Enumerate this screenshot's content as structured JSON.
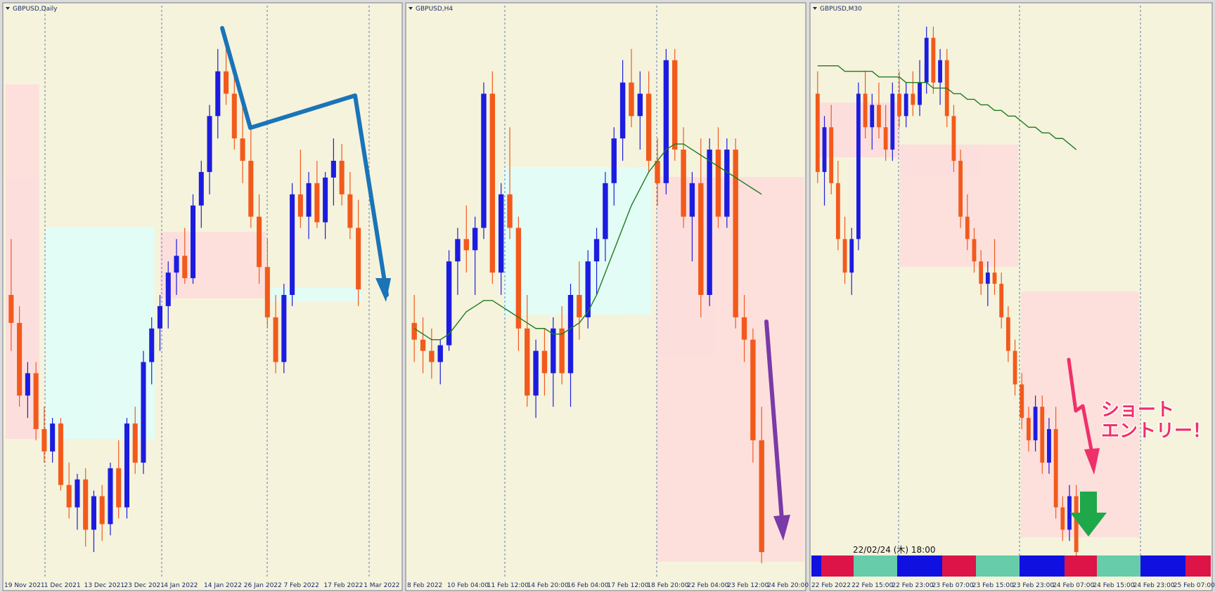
{
  "panels": [
    {
      "title": "GBPUSD,Daily",
      "x_labels": [
        "19 Nov 2021",
        "1 Dec 2021",
        "13 Dec 2021",
        "23 Dec 2021",
        "4 Jan 2022",
        "14 Jan 2022",
        "26 Jan 2022",
        "7 Feb 2022",
        "17 Feb 2022",
        "1 Mar 2022"
      ],
      "ylim": [
        0,
        100
      ],
      "candles": [
        [
          50,
          60,
          40,
          45
        ],
        [
          45,
          48,
          30,
          32
        ],
        [
          32,
          38,
          28,
          36
        ],
        [
          36,
          38,
          24,
          26
        ],
        [
          26,
          30,
          20,
          22
        ],
        [
          22,
          28,
          20,
          27
        ],
        [
          27,
          28,
          15,
          16
        ],
        [
          16,
          20,
          10,
          12
        ],
        [
          12,
          18,
          8,
          17
        ],
        [
          17,
          19,
          5,
          8
        ],
        [
          8,
          15,
          4,
          14
        ],
        [
          14,
          16,
          6,
          9
        ],
        [
          9,
          20,
          7,
          19
        ],
        [
          19,
          24,
          10,
          12
        ],
        [
          12,
          28,
          10,
          27
        ],
        [
          27,
          30,
          18,
          20
        ],
        [
          20,
          40,
          18,
          38
        ],
        [
          38,
          46,
          34,
          44
        ],
        [
          44,
          50,
          40,
          48
        ],
        [
          48,
          56,
          44,
          54
        ],
        [
          54,
          60,
          50,
          57
        ],
        [
          57,
          62,
          52,
          53
        ],
        [
          53,
          68,
          52,
          66
        ],
        [
          66,
          74,
          62,
          72
        ],
        [
          72,
          84,
          68,
          82
        ],
        [
          82,
          94,
          78,
          90
        ],
        [
          90,
          96,
          84,
          86
        ],
        [
          86,
          90,
          76,
          78
        ],
        [
          78,
          84,
          70,
          74
        ],
        [
          74,
          80,
          62,
          64
        ],
        [
          64,
          68,
          52,
          55
        ],
        [
          55,
          60,
          44,
          46
        ],
        [
          46,
          50,
          36,
          38
        ],
        [
          38,
          52,
          36,
          50
        ],
        [
          50,
          70,
          48,
          68
        ],
        [
          68,
          76,
          62,
          64
        ],
        [
          64,
          72,
          60,
          70
        ],
        [
          70,
          74,
          62,
          63
        ],
        [
          63,
          72,
          60,
          71
        ],
        [
          71,
          78,
          66,
          74
        ],
        [
          74,
          77,
          66,
          68
        ],
        [
          68,
          72,
          60,
          62
        ],
        [
          62,
          67,
          48,
          51
        ]
      ]
    },
    {
      "title": "GBPUSD,H4",
      "x_labels": [
        "8 Feb 2022",
        "10 Feb 04:00",
        "11 Feb 12:00",
        "14 Feb 20:00",
        "16 Feb 04:00",
        "17 Feb 12:00",
        "18 Feb 20:00",
        "22 Feb 04:00",
        "23 Feb 12:00",
        "24 Feb 20:00"
      ],
      "ylim": [
        0,
        100
      ],
      "candles": [
        [
          45,
          50,
          38,
          42
        ],
        [
          42,
          46,
          36,
          40
        ],
        [
          40,
          44,
          35,
          38
        ],
        [
          38,
          42,
          34,
          41
        ],
        [
          41,
          58,
          40,
          56
        ],
        [
          56,
          62,
          50,
          60
        ],
        [
          60,
          66,
          54,
          58
        ],
        [
          58,
          64,
          50,
          62
        ],
        [
          62,
          88,
          60,
          86
        ],
        [
          86,
          90,
          52,
          54
        ],
        [
          54,
          70,
          50,
          68
        ],
        [
          68,
          80,
          60,
          62
        ],
        [
          62,
          64,
          40,
          44
        ],
        [
          44,
          50,
          30,
          32
        ],
        [
          32,
          42,
          28,
          40
        ],
        [
          40,
          44,
          32,
          36
        ],
        [
          36,
          46,
          30,
          44
        ],
        [
          44,
          48,
          34,
          36
        ],
        [
          36,
          52,
          30,
          50
        ],
        [
          50,
          56,
          42,
          46
        ],
        [
          46,
          58,
          44,
          56
        ],
        [
          56,
          62,
          50,
          60
        ],
        [
          60,
          72,
          56,
          70
        ],
        [
          70,
          80,
          66,
          78
        ],
        [
          78,
          92,
          74,
          88
        ],
        [
          88,
          94,
          80,
          82
        ],
        [
          82,
          90,
          76,
          86
        ],
        [
          86,
          90,
          72,
          74
        ],
        [
          74,
          78,
          66,
          70
        ],
        [
          70,
          94,
          68,
          92
        ],
        [
          92,
          94,
          74,
          76
        ],
        [
          76,
          80,
          62,
          64
        ],
        [
          64,
          72,
          56,
          70
        ],
        [
          70,
          78,
          46,
          50
        ],
        [
          50,
          78,
          48,
          76
        ],
        [
          76,
          80,
          62,
          64
        ],
        [
          64,
          78,
          62,
          76
        ],
        [
          76,
          78,
          44,
          46
        ],
        [
          46,
          50,
          38,
          42
        ],
        [
          42,
          44,
          20,
          24
        ],
        [
          24,
          30,
          2,
          4
        ]
      ],
      "ma": [
        44,
        43,
        42,
        42,
        43,
        45,
        47,
        48,
        49,
        49,
        48,
        47,
        46,
        45,
        44,
        44,
        43,
        43,
        44,
        45,
        47,
        50,
        54,
        58,
        62,
        66,
        69,
        72,
        74,
        76,
        77,
        77,
        76,
        75,
        74,
        73,
        72,
        71,
        70,
        69,
        68
      ]
    },
    {
      "title": "GBPUSD,M30",
      "x_labels": [
        "22 Feb 2022",
        "22 Feb 15:00",
        "22 Feb 23:00",
        "23 Feb 07:00",
        "23 Feb 15:00",
        "23 Feb 23:00",
        "24 Feb 07:00",
        "24 Feb 15:00",
        "24 Feb 23:00",
        "25 Feb 07:00"
      ],
      "ylim": [
        0,
        100
      ],
      "candles": [
        [
          86,
          90,
          70,
          72
        ],
        [
          72,
          82,
          66,
          80
        ],
        [
          80,
          84,
          68,
          70
        ],
        [
          70,
          74,
          58,
          60
        ],
        [
          60,
          64,
          52,
          54
        ],
        [
          54,
          62,
          50,
          60
        ],
        [
          60,
          88,
          58,
          86
        ],
        [
          86,
          90,
          78,
          80
        ],
        [
          80,
          86,
          76,
          84
        ],
        [
          84,
          88,
          78,
          80
        ],
        [
          80,
          84,
          74,
          76
        ],
        [
          76,
          88,
          74,
          86
        ],
        [
          86,
          90,
          80,
          82
        ],
        [
          82,
          88,
          80,
          86
        ],
        [
          86,
          90,
          82,
          84
        ],
        [
          84,
          92,
          82,
          88
        ],
        [
          88,
          98,
          86,
          96
        ],
        [
          96,
          98,
          86,
          88
        ],
        [
          88,
          94,
          84,
          92
        ],
        [
          92,
          94,
          80,
          82
        ],
        [
          82,
          84,
          72,
          74
        ],
        [
          74,
          76,
          62,
          64
        ],
        [
          64,
          68,
          58,
          60
        ],
        [
          60,
          62,
          54,
          56
        ],
        [
          56,
          58,
          50,
          52
        ],
        [
          52,
          56,
          48,
          54
        ],
        [
          54,
          60,
          50,
          52
        ],
        [
          52,
          54,
          44,
          46
        ],
        [
          46,
          48,
          38,
          40
        ],
        [
          40,
          42,
          32,
          34
        ],
        [
          34,
          36,
          26,
          28
        ],
        [
          28,
          30,
          22,
          24
        ],
        [
          24,
          32,
          22,
          30
        ],
        [
          30,
          32,
          18,
          20
        ],
        [
          20,
          28,
          18,
          26
        ],
        [
          26,
          30,
          10,
          12
        ],
        [
          12,
          14,
          6,
          8
        ],
        [
          8,
          16,
          6,
          14
        ],
        [
          14,
          16,
          2,
          4
        ]
      ],
      "ma": [
        91,
        91,
        91,
        91,
        90,
        90,
        90,
        90,
        90,
        89,
        89,
        89,
        89,
        88,
        88,
        88,
        88,
        87,
        87,
        87,
        86,
        86,
        85,
        85,
        84,
        84,
        83,
        83,
        82,
        82,
        81,
        80,
        80,
        79,
        79,
        78,
        78,
        77,
        76
      ]
    }
  ],
  "bull_color": "#1c1ce0",
  "bear_color": "#f25a1c",
  "ma_color": "#1e7a1e",
  "indicator": {
    "timestamp": "22/02/24 (木) 18:00"
  },
  "annotation": [
    "ショート",
    "エントリー！"
  ]
}
